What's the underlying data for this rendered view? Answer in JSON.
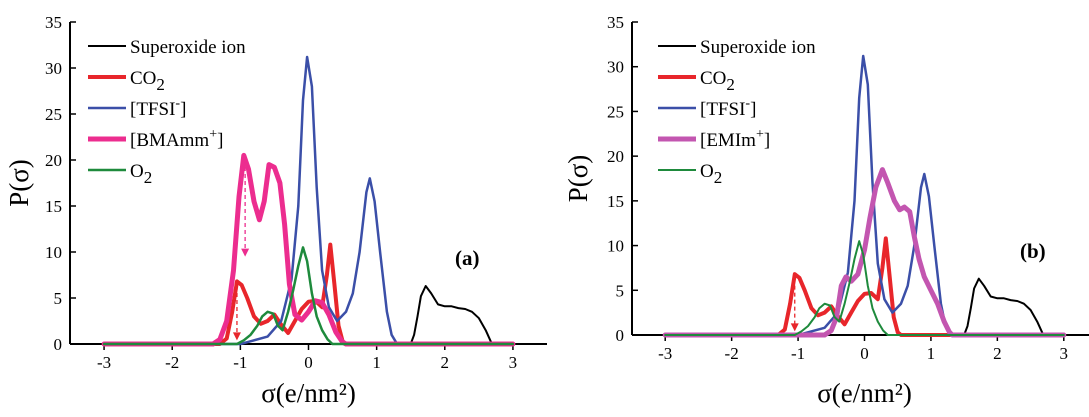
{
  "chart_data": [
    {
      "type": "line",
      "panel_label": "(a)",
      "xlabel": "σ(e/nm²)",
      "ylabel": "P(σ)",
      "xlim": [
        -3.5,
        3.5
      ],
      "ylim": [
        0,
        35
      ],
      "xticks": [
        "-3",
        "-2",
        "-1",
        "0",
        "1",
        "2",
        "3"
      ],
      "yticks": [
        "0",
        "5",
        "10",
        "15",
        "20",
        "25",
        "30",
        "35"
      ],
      "legend_position": "top-left",
      "series": [
        {
          "name": "Superoxide ion",
          "color": "#000000",
          "width": 2,
          "points": [
            [
              -3,
              0
            ],
            [
              1.5,
              0
            ],
            [
              1.55,
              1.0
            ],
            [
              1.6,
              3.0
            ],
            [
              1.65,
              5.2
            ],
            [
              1.72,
              6.3
            ],
            [
              1.8,
              5.5
            ],
            [
              1.9,
              4.3
            ],
            [
              2.0,
              4.1
            ],
            [
              2.1,
              4.1
            ],
            [
              2.2,
              3.9
            ],
            [
              2.3,
              3.8
            ],
            [
              2.4,
              3.5
            ],
            [
              2.5,
              2.8
            ],
            [
              2.6,
              1.5
            ],
            [
              2.68,
              0.2
            ],
            [
              2.75,
              0
            ],
            [
              3,
              0
            ]
          ]
        },
        {
          "name": "CO2",
          "color": "#e8262b",
          "width": 4,
          "points": [
            [
              -3,
              0
            ],
            [
              -1.3,
              0
            ],
            [
              -1.2,
              0.6
            ],
            [
              -1.12,
              3.5
            ],
            [
              -1.05,
              6.8
            ],
            [
              -0.98,
              6.4
            ],
            [
              -0.9,
              5.0
            ],
            [
              -0.8,
              3.0
            ],
            [
              -0.7,
              2.2
            ],
            [
              -0.6,
              2.5
            ],
            [
              -0.5,
              3.2
            ],
            [
              -0.4,
              2.1
            ],
            [
              -0.3,
              1.2
            ],
            [
              -0.2,
              2.5
            ],
            [
              -0.1,
              3.8
            ],
            [
              0.0,
              4.6
            ],
            [
              0.1,
              4.7
            ],
            [
              0.2,
              4.0
            ],
            [
              0.27,
              7.5
            ],
            [
              0.32,
              10.8
            ],
            [
              0.38,
              6.5
            ],
            [
              0.44,
              2.0
            ],
            [
              0.5,
              0.3
            ],
            [
              0.55,
              0
            ],
            [
              3,
              0
            ]
          ]
        },
        {
          "name": "[TFSI⁻]",
          "color": "#3b4fa8",
          "width": 2.5,
          "points": [
            [
              -3,
              0
            ],
            [
              -1.0,
              0
            ],
            [
              -0.9,
              0.2
            ],
            [
              -0.6,
              0.8
            ],
            [
              -0.4,
              2.5
            ],
            [
              -0.25,
              7.0
            ],
            [
              -0.15,
              15.0
            ],
            [
              -0.08,
              26.5
            ],
            [
              -0.02,
              31.2
            ],
            [
              0.05,
              28.0
            ],
            [
              0.12,
              17.0
            ],
            [
              0.2,
              8.0
            ],
            [
              0.3,
              4.0
            ],
            [
              0.42,
              2.5
            ],
            [
              0.55,
              3.5
            ],
            [
              0.65,
              5.5
            ],
            [
              0.75,
              10.0
            ],
            [
              0.85,
              16.5
            ],
            [
              0.9,
              18.0
            ],
            [
              0.97,
              15.5
            ],
            [
              1.05,
              10.0
            ],
            [
              1.15,
              3.5
            ],
            [
              1.22,
              1.0
            ],
            [
              1.3,
              0
            ],
            [
              3,
              0
            ]
          ]
        },
        {
          "name": "[BMAmm⁺]",
          "color": "#ec2d8f",
          "width": 5,
          "points": [
            [
              -3,
              0
            ],
            [
              -1.4,
              0
            ],
            [
              -1.3,
              0.5
            ],
            [
              -1.2,
              2.5
            ],
            [
              -1.1,
              8.0
            ],
            [
              -1.02,
              16.0
            ],
            [
              -0.95,
              20.5
            ],
            [
              -0.88,
              19.0
            ],
            [
              -0.8,
              15.5
            ],
            [
              -0.72,
              13.5
            ],
            [
              -0.65,
              15.5
            ],
            [
              -0.58,
              19.5
            ],
            [
              -0.5,
              19.2
            ],
            [
              -0.42,
              17.5
            ],
            [
              -0.35,
              13.0
            ],
            [
              -0.28,
              6.5
            ],
            [
              -0.2,
              3.2
            ],
            [
              -0.1,
              2.6
            ],
            [
              0.0,
              3.5
            ],
            [
              0.1,
              4.7
            ],
            [
              0.2,
              4.5
            ],
            [
              0.3,
              3.2
            ],
            [
              0.4,
              1.3
            ],
            [
              0.5,
              0.2
            ],
            [
              0.55,
              0
            ],
            [
              3,
              0
            ]
          ]
        },
        {
          "name": "O2",
          "color": "#1e8a3c",
          "width": 2.5,
          "points": [
            [
              -3,
              0
            ],
            [
              -1.05,
              0
            ],
            [
              -0.95,
              0.4
            ],
            [
              -0.85,
              1.0
            ],
            [
              -0.75,
              2.0
            ],
            [
              -0.68,
              3.0
            ],
            [
              -0.6,
              3.5
            ],
            [
              -0.52,
              3.3
            ],
            [
              -0.45,
              2.0
            ],
            [
              -0.38,
              1.5
            ],
            [
              -0.3,
              3.5
            ],
            [
              -0.22,
              6.0
            ],
            [
              -0.15,
              8.5
            ],
            [
              -0.08,
              10.5
            ],
            [
              -0.02,
              9.0
            ],
            [
              0.05,
              5.5
            ],
            [
              0.12,
              3.0
            ],
            [
              0.2,
              1.5
            ],
            [
              0.28,
              0.5
            ],
            [
              0.35,
              0
            ],
            [
              3,
              0
            ]
          ]
        }
      ],
      "annotations": [
        {
          "type": "dashed-arrow",
          "color": "#e8262b",
          "x": -1.05,
          "y_from": 6.3,
          "y_to": 0.4
        },
        {
          "type": "dashed-arrow",
          "color": "#ec2d8f",
          "x": -0.93,
          "y_from": 20.0,
          "y_to": 9.5
        }
      ]
    },
    {
      "type": "line",
      "panel_label": "(b)",
      "xlabel": "σ(e/nm²)",
      "ylabel": "P(σ)",
      "xlim": [
        -3.5,
        3.5
      ],
      "ylim": [
        0,
        35
      ],
      "xticks": [
        "-3",
        "-2",
        "-1",
        "0",
        "1",
        "2",
        "3"
      ],
      "yticks": [
        "0",
        "5",
        "10",
        "15",
        "20",
        "25",
        "30",
        "35"
      ],
      "legend_position": "top-left",
      "series": [
        {
          "name": "Superoxide ion",
          "color": "#000000",
          "width": 2,
          "points": [
            [
              -3,
              0
            ],
            [
              1.5,
              0
            ],
            [
              1.55,
              1.0
            ],
            [
              1.6,
              3.0
            ],
            [
              1.65,
              5.2
            ],
            [
              1.72,
              6.3
            ],
            [
              1.8,
              5.5
            ],
            [
              1.9,
              4.3
            ],
            [
              2.0,
              4.1
            ],
            [
              2.1,
              4.1
            ],
            [
              2.2,
              3.9
            ],
            [
              2.3,
              3.8
            ],
            [
              2.4,
              3.5
            ],
            [
              2.5,
              2.8
            ],
            [
              2.6,
              1.5
            ],
            [
              2.68,
              0.2
            ],
            [
              2.75,
              0
            ],
            [
              3,
              0
            ]
          ]
        },
        {
          "name": "CO2",
          "color": "#e8262b",
          "width": 4,
          "points": [
            [
              -3,
              0
            ],
            [
              -1.3,
              0
            ],
            [
              -1.2,
              0.6
            ],
            [
              -1.12,
              3.5
            ],
            [
              -1.05,
              6.8
            ],
            [
              -0.98,
              6.4
            ],
            [
              -0.9,
              5.0
            ],
            [
              -0.8,
              3.0
            ],
            [
              -0.7,
              2.2
            ],
            [
              -0.6,
              2.5
            ],
            [
              -0.5,
              3.2
            ],
            [
              -0.4,
              2.1
            ],
            [
              -0.3,
              1.2
            ],
            [
              -0.2,
              2.5
            ],
            [
              -0.1,
              3.8
            ],
            [
              0.0,
              4.6
            ],
            [
              0.1,
              4.7
            ],
            [
              0.2,
              4.0
            ],
            [
              0.27,
              7.5
            ],
            [
              0.32,
              10.8
            ],
            [
              0.38,
              6.5
            ],
            [
              0.44,
              2.0
            ],
            [
              0.5,
              0.3
            ],
            [
              0.55,
              0
            ],
            [
              3,
              0
            ]
          ]
        },
        {
          "name": "[TFSI⁻]",
          "color": "#3b4fa8",
          "width": 2.5,
          "points": [
            [
              -3,
              0
            ],
            [
              -1.0,
              0
            ],
            [
              -0.9,
              0.2
            ],
            [
              -0.6,
              0.8
            ],
            [
              -0.4,
              2.5
            ],
            [
              -0.25,
              7.0
            ],
            [
              -0.15,
              15.0
            ],
            [
              -0.08,
              26.5
            ],
            [
              -0.02,
              31.2
            ],
            [
              0.05,
              28.0
            ],
            [
              0.12,
              17.0
            ],
            [
              0.2,
              8.0
            ],
            [
              0.3,
              4.0
            ],
            [
              0.42,
              2.5
            ],
            [
              0.55,
              3.5
            ],
            [
              0.65,
              5.5
            ],
            [
              0.75,
              10.0
            ],
            [
              0.85,
              16.5
            ],
            [
              0.9,
              18.0
            ],
            [
              0.97,
              15.5
            ],
            [
              1.05,
              10.0
            ],
            [
              1.15,
              3.5
            ],
            [
              1.22,
              1.0
            ],
            [
              1.3,
              0
            ],
            [
              3,
              0
            ]
          ]
        },
        {
          "name": "[EMIm⁺]",
          "color": "#c356b0",
          "width": 5,
          "points": [
            [
              -3,
              0
            ],
            [
              -0.6,
              0
            ],
            [
              -0.5,
              0.5
            ],
            [
              -0.42,
              2.0
            ],
            [
              -0.35,
              5.5
            ],
            [
              -0.28,
              6.5
            ],
            [
              -0.2,
              6.0
            ],
            [
              -0.1,
              6.8
            ],
            [
              0.0,
              9.5
            ],
            [
              0.08,
              13.0
            ],
            [
              0.17,
              16.5
            ],
            [
              0.27,
              18.5
            ],
            [
              0.35,
              17.0
            ],
            [
              0.45,
              15.0
            ],
            [
              0.53,
              14.0
            ],
            [
              0.6,
              14.3
            ],
            [
              0.68,
              13.8
            ],
            [
              0.75,
              11.0
            ],
            [
              0.82,
              8.5
            ],
            [
              0.9,
              6.5
            ],
            [
              1.0,
              5.0
            ],
            [
              1.1,
              3.5
            ],
            [
              1.2,
              1.5
            ],
            [
              1.28,
              0.3
            ],
            [
              1.32,
              0
            ],
            [
              3,
              0
            ]
          ]
        },
        {
          "name": "O2",
          "color": "#1e8a3c",
          "width": 2,
          "points": [
            [
              -3,
              0
            ],
            [
              -1.05,
              0
            ],
            [
              -0.95,
              0.4
            ],
            [
              -0.85,
              1.0
            ],
            [
              -0.75,
              2.0
            ],
            [
              -0.68,
              3.0
            ],
            [
              -0.6,
              3.5
            ],
            [
              -0.52,
              3.3
            ],
            [
              -0.45,
              2.0
            ],
            [
              -0.38,
              1.5
            ],
            [
              -0.3,
              3.5
            ],
            [
              -0.22,
              6.0
            ],
            [
              -0.15,
              8.5
            ],
            [
              -0.08,
              10.5
            ],
            [
              -0.02,
              9.0
            ],
            [
              0.05,
              5.5
            ],
            [
              0.12,
              3.0
            ],
            [
              0.2,
              1.5
            ],
            [
              0.28,
              0.5
            ],
            [
              0.35,
              0
            ],
            [
              3,
              0
            ]
          ]
        }
      ],
      "annotations": [
        {
          "type": "dashed-arrow",
          "color": "#e8262b",
          "x": -1.05,
          "y_from": 6.3,
          "y_to": 0.4
        }
      ]
    }
  ]
}
